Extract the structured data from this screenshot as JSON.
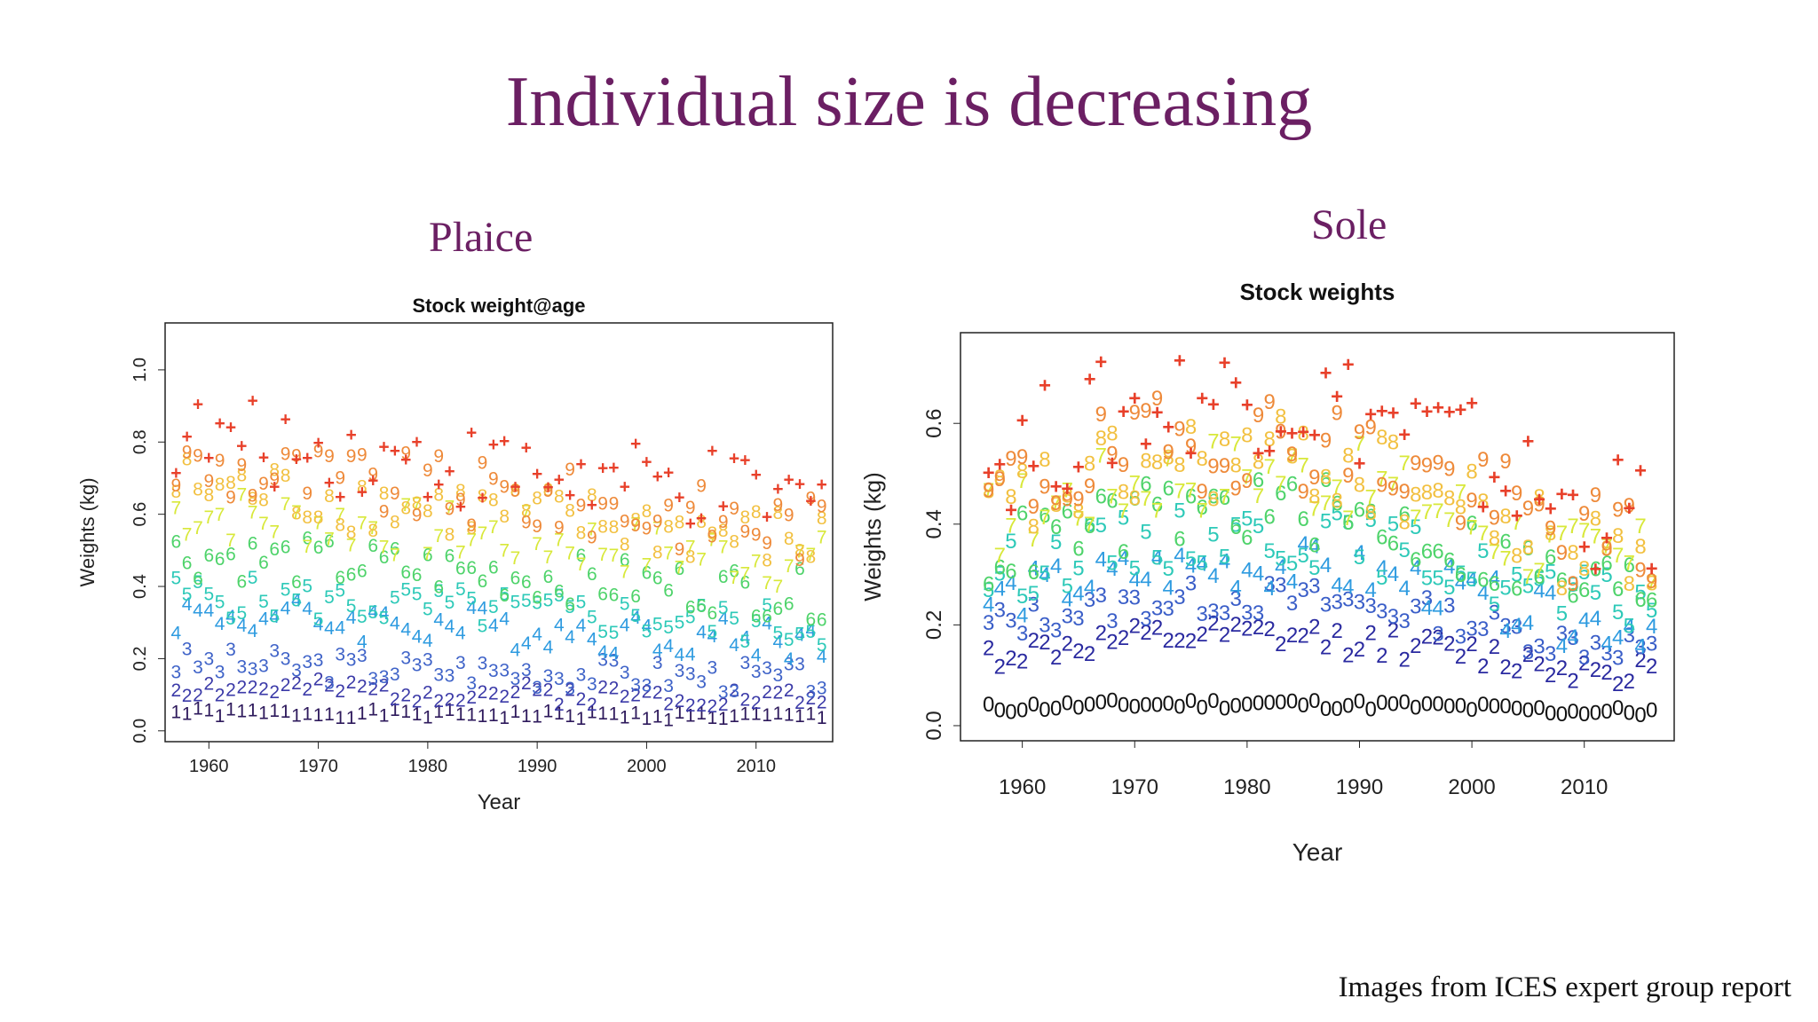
{
  "slide": {
    "title": "Individual size is decreasing",
    "plaice_label": "Plaice",
    "sole_label": "Sole",
    "footer": "Images from ICES expert group report"
  },
  "colors": {
    "title": "#6b1f63"
  },
  "chart_data": [
    {
      "type": "scatter",
      "id": "plaice",
      "title": "Stock weight@age",
      "xlabel": "Year",
      "ylabel": "Weights (kg)",
      "xlim": [
        1956,
        2017
      ],
      "ylim": [
        -0.03,
        1.13
      ],
      "xticks": [
        1960,
        1970,
        1980,
        1990,
        2000,
        2010
      ],
      "yticks": [
        0.0,
        0.2,
        0.4,
        0.6,
        0.8,
        1.0
      ],
      "ytick_labels": [
        "0.0",
        "0.2",
        "0.4",
        "0.6",
        "0.8",
        "1.0"
      ],
      "grid": false,
      "years": [
        1957,
        2016
      ],
      "series": [
        {
          "name": "1",
          "label": "1",
          "color": "#2e1a5c",
          "level": 0.05,
          "amp": 0.012,
          "seed": 1
        },
        {
          "name": "2",
          "label": "2",
          "color": "#3b3aa8",
          "level": 0.115,
          "amp": 0.03,
          "seed": 2
        },
        {
          "name": "3",
          "label": "3",
          "color": "#3f63c8",
          "level": 0.18,
          "amp": 0.045,
          "seed": 3
        },
        {
          "name": "4",
          "label": "4",
          "color": "#2e9be0",
          "level": 0.31,
          "amp": 0.06,
          "seed": 4
        },
        {
          "name": "5",
          "label": "5",
          "color": "#2dc9b8",
          "level": 0.36,
          "amp": 0.06,
          "seed": 5
        },
        {
          "name": "6",
          "label": "6",
          "color": "#4ed36a",
          "level": 0.47,
          "amp": 0.07,
          "seed": 6
        },
        {
          "name": "7",
          "label": "7",
          "color": "#d8e83a",
          "level": 0.58,
          "amp": 0.08,
          "seed": 7
        },
        {
          "name": "8",
          "label": "8",
          "color": "#f2c040",
          "level": 0.65,
          "amp": 0.09,
          "seed": 8
        },
        {
          "name": "9",
          "label": "9",
          "color": "#ee8a3a",
          "level": 0.7,
          "amp": 0.1,
          "seed": 9
        },
        {
          "name": "10+",
          "label": "+",
          "color": "#e8402a",
          "level": 0.78,
          "amp": 0.12,
          "seed": 10
        }
      ]
    },
    {
      "type": "scatter",
      "id": "sole",
      "title": "Stock weights",
      "xlabel": "Year",
      "ylabel": "Weights (kg)",
      "xlim": [
        1954.5,
        2018
      ],
      "ylim": [
        -0.03,
        0.78
      ],
      "xticks": [
        1960,
        1970,
        1980,
        1990,
        2000,
        2010
      ],
      "yticks": [
        0.0,
        0.2,
        0.4,
        0.6
      ],
      "ytick_labels": [
        "0.0",
        "0.2",
        "0.4",
        "0.6"
      ],
      "grid": false,
      "years": [
        1957,
        2016
      ],
      "series": [
        {
          "name": "0",
          "label": "0",
          "color": "#111111",
          "level": 0.035,
          "amp": 0.01,
          "seed": 11
        },
        {
          "name": "2",
          "label": "2",
          "color": "#2a2aa0",
          "level": 0.14,
          "amp": 0.03,
          "seed": 12
        },
        {
          "name": "3",
          "label": "3",
          "color": "#3a5ec8",
          "level": 0.2,
          "amp": 0.035,
          "seed": 13
        },
        {
          "name": "4",
          "label": "4",
          "color": "#2e9be0",
          "level": 0.25,
          "amp": 0.05,
          "seed": 14
        },
        {
          "name": "5",
          "label": "5",
          "color": "#2dc9b8",
          "level": 0.3,
          "amp": 0.06,
          "seed": 15
        },
        {
          "name": "6",
          "label": "6",
          "color": "#4ed36a",
          "level": 0.34,
          "amp": 0.07,
          "seed": 16
        },
        {
          "name": "7",
          "label": "7",
          "color": "#d8e83a",
          "level": 0.4,
          "amp": 0.08,
          "seed": 17
        },
        {
          "name": "8",
          "label": "8",
          "color": "#f2c040",
          "level": 0.42,
          "amp": 0.09,
          "seed": 18
        },
        {
          "name": "9",
          "label": "9",
          "color": "#ee8a3a",
          "level": 0.45,
          "amp": 0.1,
          "seed": 19
        },
        {
          "name": "10+",
          "label": "+",
          "color": "#e8402a",
          "level": 0.52,
          "amp": 0.12,
          "seed": 20
        }
      ]
    }
  ]
}
